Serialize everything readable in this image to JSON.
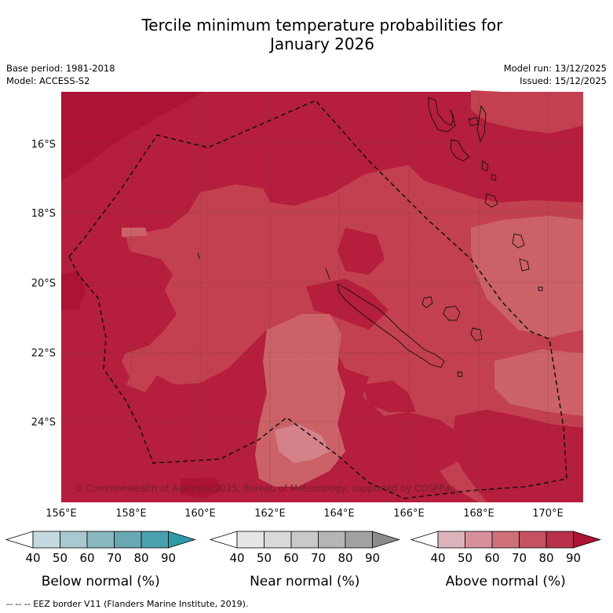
{
  "title_line1": "Tercile minimum temperature probabilities for",
  "title_line2": "January 2026",
  "meta": {
    "base_period": "Base period: 1981-2018",
    "model": "Model: ACCESS-S2",
    "model_run": "Model run: 13/12/2025",
    "issued": "Issued: 15/12/2025"
  },
  "map": {
    "lat_labels": [
      "16°S",
      "18°S",
      "20°S",
      "22°S",
      "24°S"
    ],
    "lon_labels": [
      "156°E",
      "158°E",
      "160°E",
      "162°E",
      "164°E",
      "166°E",
      "168°E",
      "170°E"
    ],
    "copyright": "© Commonwealth of Australia 2025, Bureau of Meteorology, supported by COSPPac",
    "colors": {
      "above_80": "#b51e3c",
      "above_70": "#c2404f",
      "above_60": "#cc6168",
      "above_90": "#ad1334"
    }
  },
  "legends": [
    {
      "id": "below",
      "label": "Below normal (%)",
      "ticks": [
        "40",
        "50",
        "60",
        "70",
        "80",
        "90"
      ],
      "colors": [
        "#c4d9e0",
        "#a7c9cf",
        "#89b8c1",
        "#69a7b2",
        "#4aa0ae",
        "#3099a8"
      ]
    },
    {
      "id": "near",
      "label": "Near normal (%)",
      "ticks": [
        "40",
        "50",
        "60",
        "70",
        "80",
        "90"
      ],
      "colors": [
        "#e6e6e6",
        "#d9d9d9",
        "#c9c9c9",
        "#b5b5b5",
        "#a1a1a1",
        "#8c8c8c"
      ]
    },
    {
      "id": "above",
      "label": "Above normal (%)",
      "ticks": [
        "40",
        "50",
        "60",
        "70",
        "80",
        "90"
      ],
      "colors": [
        "#dcb3bb",
        "#d6909a",
        "#cf7078",
        "#c45262",
        "#b8304a",
        "#ad1334"
      ]
    }
  ],
  "footnote": "-- -- -- EEZ border V11 (Flanders Marine Institute, 2019)."
}
